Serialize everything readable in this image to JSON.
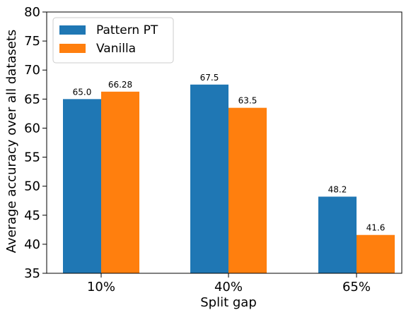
{
  "chart_data": {
    "type": "bar",
    "title": "",
    "xlabel": "Split gap",
    "ylabel": "Average accuracy over all datasets",
    "categories": [
      "10%",
      "40%",
      "65%"
    ],
    "series": [
      {
        "name": "Pattern PT",
        "values": [
          65.0,
          67.5,
          48.2
        ],
        "labels": [
          "65.0",
          "67.5",
          "48.2"
        ],
        "color": "#1f77b4"
      },
      {
        "name": "Vanilla",
        "values": [
          66.28,
          63.5,
          41.6
        ],
        "labels": [
          "66.28",
          "63.5",
          "41.6"
        ],
        "color": "#ff7f0e"
      }
    ],
    "ylim": [
      35,
      80
    ],
    "yticks": [
      "35",
      "40",
      "45",
      "50",
      "55",
      "60",
      "65",
      "70",
      "75",
      "80"
    ],
    "grid": false,
    "legend_position": "top-left"
  }
}
